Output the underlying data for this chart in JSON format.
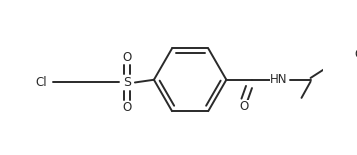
{
  "background_color": "#ffffff",
  "line_color": "#2a2a2a",
  "text_color": "#2a2a2a",
  "line_width": 1.4,
  "font_size": 8.5,
  "figsize": [
    3.57,
    1.55
  ],
  "dpi": 100,
  "xlim": [
    0,
    357
  ],
  "ylim": [
    0,
    155
  ]
}
